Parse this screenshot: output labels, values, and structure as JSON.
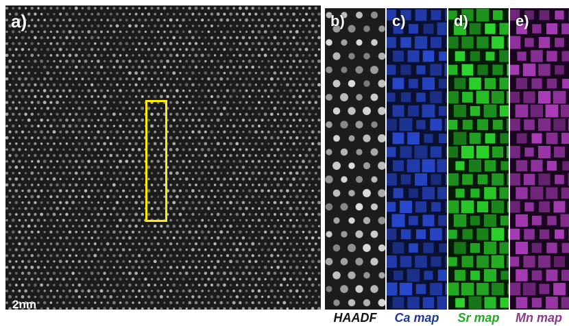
{
  "panels": {
    "a": {
      "label": "a)",
      "scalebar": "2nm"
    },
    "b": {
      "label": "b)",
      "caption": "HAADF",
      "tint": "#e8e8e8"
    },
    "c": {
      "label": "c)",
      "caption": "Ca map",
      "tint": "#2a4cd8"
    },
    "d": {
      "label": "d)",
      "caption": "Sr map",
      "tint": "#2ee02e"
    },
    "e": {
      "label": "e)",
      "caption": "Mn map",
      "tint": "#b040c0"
    }
  },
  "colors": {
    "roi_box": "#ffee00",
    "lattice_dot": "#d8d8d8"
  }
}
